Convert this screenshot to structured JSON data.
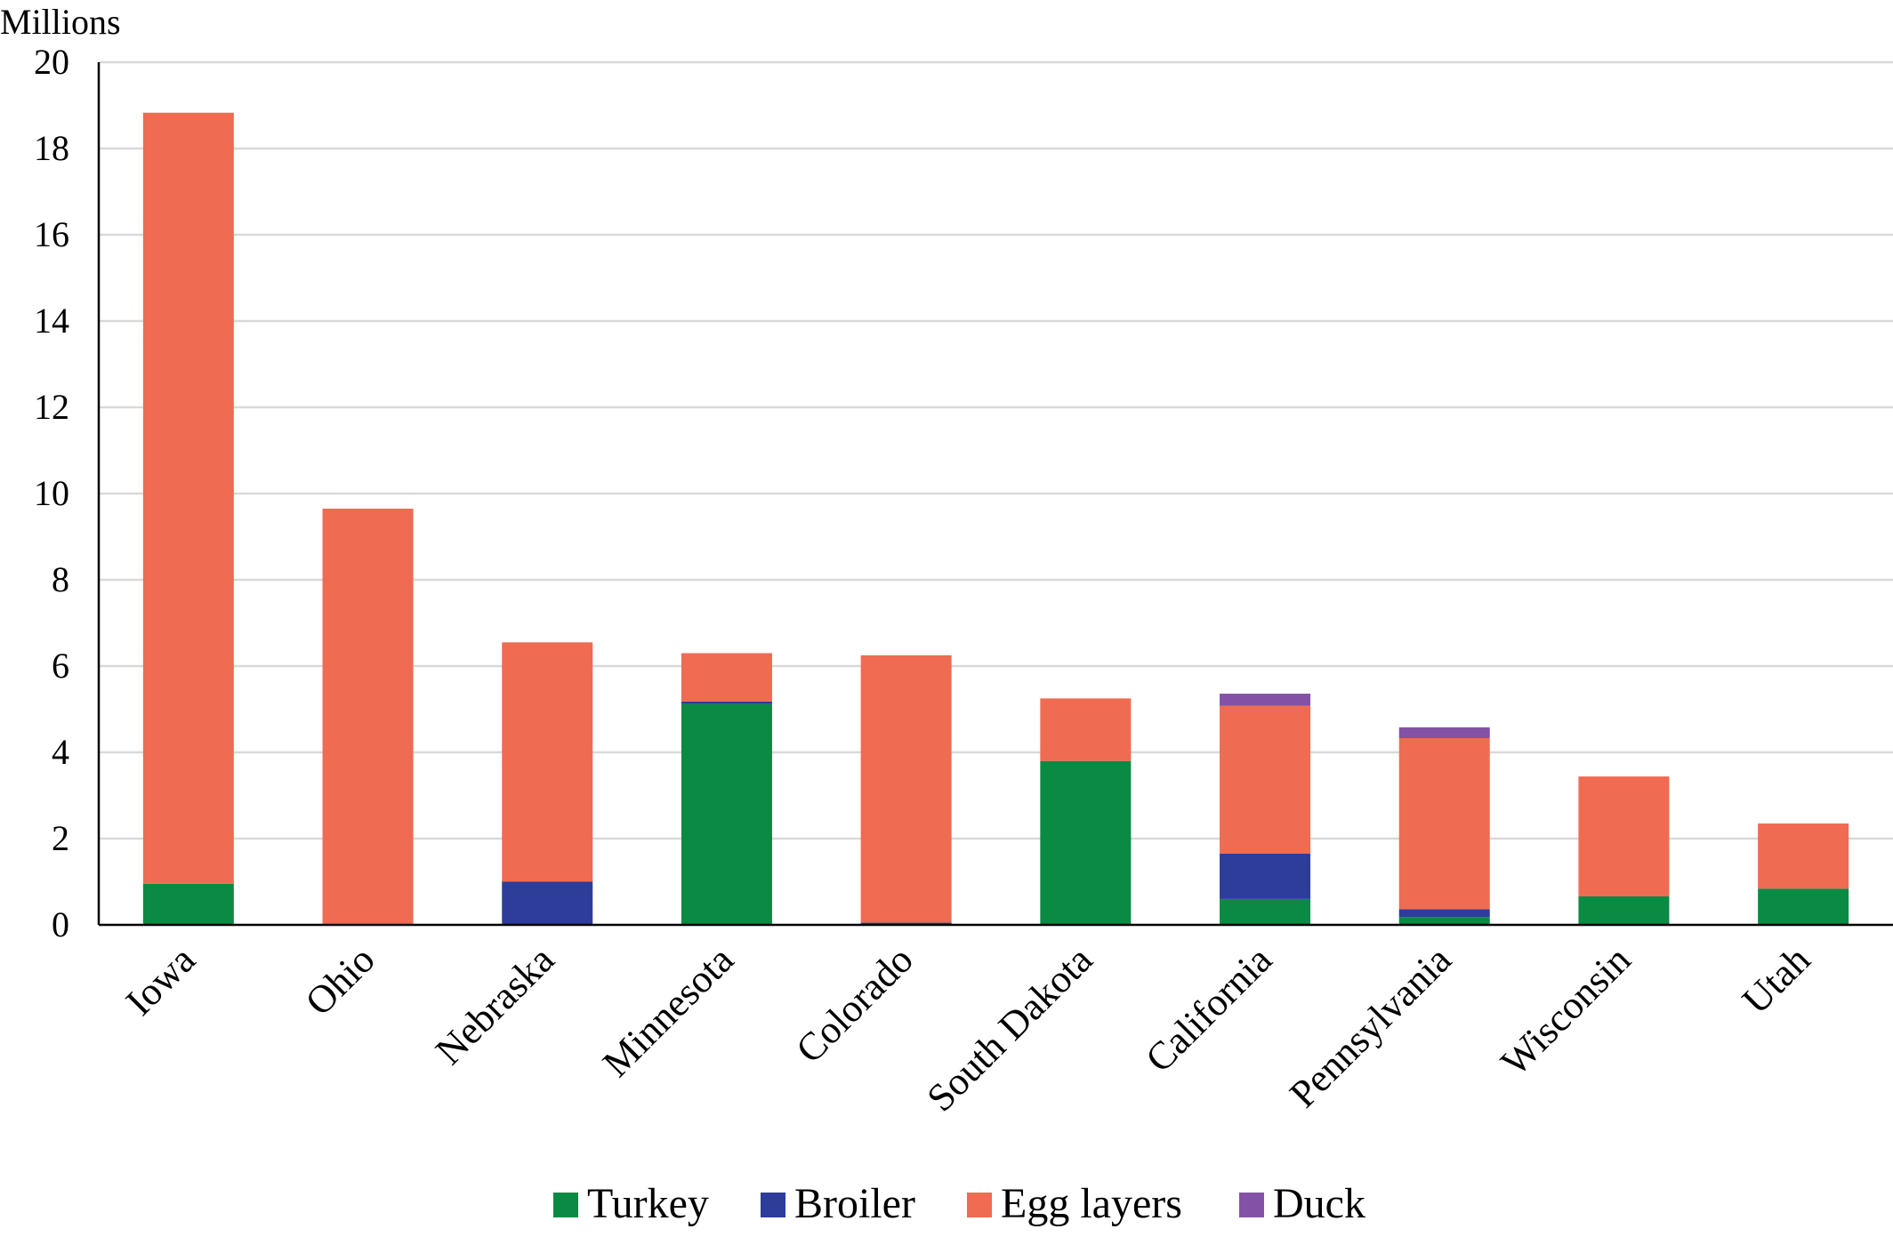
{
  "chart_data": {
    "type": "bar",
    "stacked": true,
    "title": "",
    "xlabel": "",
    "ylabel": "Millions",
    "ylim": [
      0,
      20
    ],
    "yticks": [
      0,
      2,
      4,
      6,
      8,
      10,
      12,
      14,
      16,
      18,
      20
    ],
    "grid": true,
    "legend_position": "bottom",
    "categories": [
      "Iowa",
      "Ohio",
      "Nebraska",
      "Minnesota",
      "Colorado",
      "South Dakota",
      "California",
      "Pennsylvania",
      "Wisconsin",
      "Utah"
    ],
    "series": [
      {
        "name": "Turkey",
        "color": "#0b8a43",
        "values": [
          0.95,
          0,
          0,
          5.12,
          0,
          3.8,
          0.6,
          0.18,
          0.66,
          0.84
        ]
      },
      {
        "name": "Broiler",
        "color": "#2e3c9a",
        "values": [
          0,
          0,
          1.0,
          0.06,
          0.05,
          0,
          1.05,
          0.18,
          0,
          0
        ]
      },
      {
        "name": "Egg layers",
        "color": "#ef6b52",
        "values": [
          17.88,
          9.65,
          5.55,
          1.12,
          6.2,
          1.45,
          3.43,
          3.97,
          2.78,
          1.51
        ]
      },
      {
        "name": "Duck",
        "color": "#8352a6",
        "values": [
          0,
          0,
          0,
          0,
          0,
          0,
          0.28,
          0.25,
          0,
          0
        ]
      }
    ]
  }
}
